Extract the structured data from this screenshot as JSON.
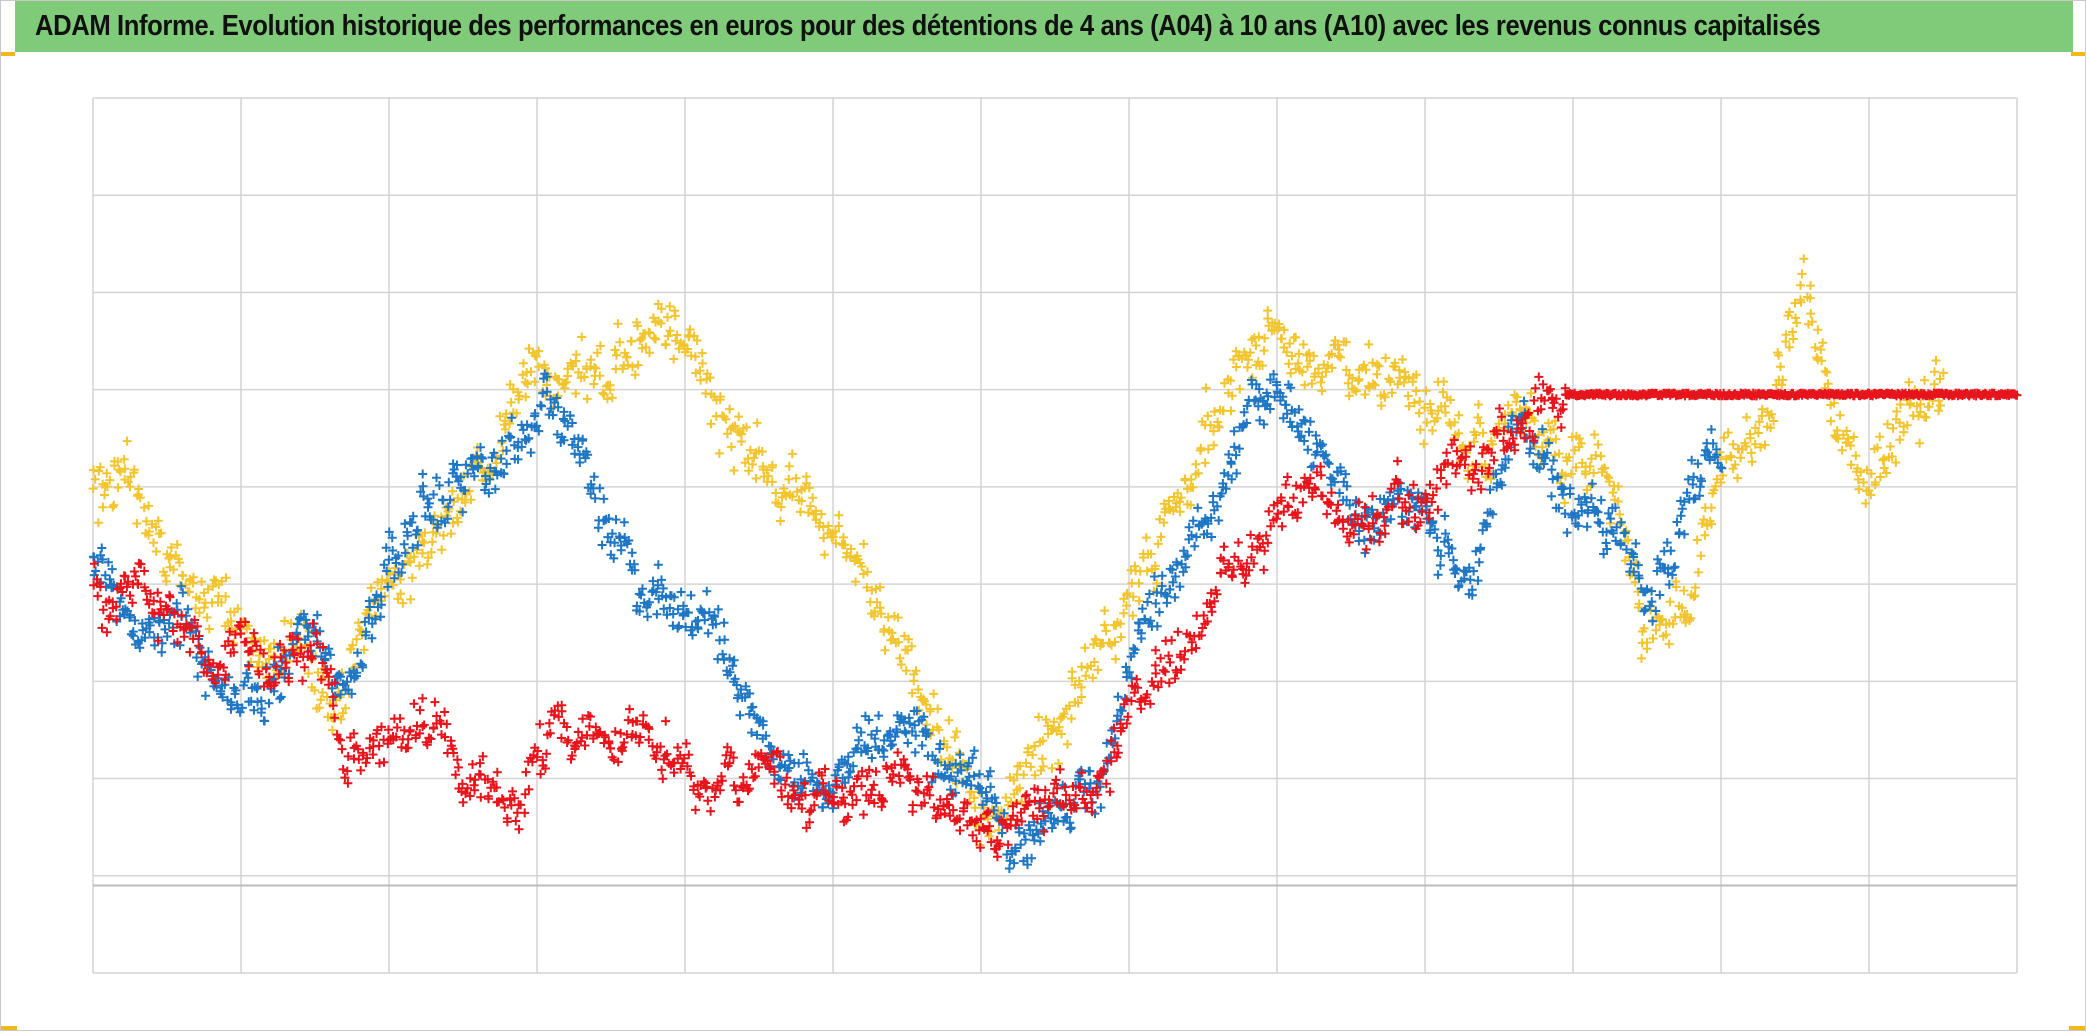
{
  "title": "ADAM Informe. Evolution historique des performances en euros pour des détentions de 4 ans (A04) à 10 ans (A10) avec les revenus connus capitalisés",
  "colors": {
    "title_bar": "#7fcb7a",
    "gridline": "#d4d4d4",
    "corner_accent": "#f2b71c"
  },
  "chart_data": {
    "type": "scatter",
    "marker": "plus",
    "title": "ADAM Informe. Evolution historique des performances en euros pour des détentions de 4 ans (A04) à 10 ans (A10) avec les revenus connus capitalisés",
    "xlabel": "",
    "ylabel": "",
    "x_range": [
      0,
      13
    ],
    "y_range": [
      0,
      9
    ],
    "grid": true,
    "reference_line_y": 0.9,
    "series": [
      {
        "color": "#f2c52e",
        "profile": [
          [
            0,
            5.0
          ],
          [
            0.3,
            4.9
          ],
          [
            0.6,
            4.0
          ],
          [
            1.0,
            3.5
          ],
          [
            1.4,
            3.2
          ],
          [
            1.6,
            3.0
          ],
          [
            2.0,
            3.9
          ],
          [
            2.5,
            5.0
          ],
          [
            3.0,
            6.2
          ],
          [
            3.5,
            6.4
          ],
          [
            3.7,
            6.6
          ],
          [
            4.0,
            6.3
          ],
          [
            4.5,
            5.3
          ],
          [
            5.0,
            4.6
          ],
          [
            5.2,
            4.1
          ],
          [
            5.5,
            3.1
          ],
          [
            5.8,
            2.2
          ],
          [
            6.0,
            1.6
          ],
          [
            6.3,
            2.3
          ],
          [
            6.6,
            2.9
          ],
          [
            7.0,
            3.9
          ],
          [
            7.3,
            4.8
          ],
          [
            7.6,
            5.6
          ],
          [
            8.0,
            6.6
          ],
          [
            8.3,
            6.1
          ],
          [
            8.7,
            6.0
          ],
          [
            9.0,
            5.9
          ],
          [
            9.3,
            5.5
          ],
          [
            9.6,
            5.7
          ],
          [
            10.0,
            5.2
          ],
          [
            10.3,
            4.9
          ],
          [
            10.5,
            3.5
          ],
          [
            10.8,
            4.0
          ],
          [
            11.0,
            5.3
          ],
          [
            11.3,
            5.4
          ],
          [
            11.55,
            7.1
          ],
          [
            11.8,
            5.6
          ],
          [
            12.0,
            5.0
          ],
          [
            12.3,
            5.8
          ],
          [
            12.5,
            6.0
          ]
        ],
        "x_end": 12.5,
        "spread": 0.55,
        "points": 1300
      },
      {
        "color": "#1f77c4",
        "profile": [
          [
            0,
            4.0
          ],
          [
            0.3,
            3.6
          ],
          [
            0.6,
            3.8
          ],
          [
            0.8,
            3.2
          ],
          [
            1.0,
            3.1
          ],
          [
            1.3,
            3.3
          ],
          [
            1.5,
            3.5
          ],
          [
            1.7,
            3.0
          ],
          [
            2.0,
            4.0
          ],
          [
            2.2,
            4.7
          ],
          [
            2.5,
            5.1
          ],
          [
            2.8,
            5.4
          ],
          [
            3.1,
            6.0
          ],
          [
            3.3,
            5.5
          ],
          [
            3.5,
            4.5
          ],
          [
            3.8,
            4.0
          ],
          [
            4.2,
            3.5
          ],
          [
            4.6,
            2.2
          ],
          [
            5.0,
            2.0
          ],
          [
            5.5,
            2.6
          ],
          [
            6.0,
            2.0
          ],
          [
            6.2,
            1.2
          ],
          [
            6.5,
            1.9
          ],
          [
            6.8,
            2.0
          ],
          [
            7.0,
            3.2
          ],
          [
            7.3,
            4.0
          ],
          [
            7.6,
            5.0
          ],
          [
            8.0,
            6.0
          ],
          [
            8.3,
            5.2
          ],
          [
            8.6,
            4.6
          ],
          [
            9.0,
            4.8
          ],
          [
            9.3,
            4.2
          ],
          [
            9.6,
            5.5
          ],
          [
            9.8,
            5.1
          ],
          [
            10.0,
            4.8
          ],
          [
            10.3,
            4.5
          ],
          [
            10.5,
            3.8
          ],
          [
            10.7,
            4.5
          ],
          [
            11.0,
            5.4
          ]
        ],
        "x_end": 11.0,
        "spread": 0.45,
        "points": 1250
      },
      {
        "color": "#e8141c",
        "profile": [
          [
            0,
            3.9
          ],
          [
            0.3,
            4.1
          ],
          [
            0.6,
            3.8
          ],
          [
            0.8,
            3.1
          ],
          [
            1.0,
            3.6
          ],
          [
            1.2,
            3.0
          ],
          [
            1.4,
            3.3
          ],
          [
            1.5,
            3.5
          ],
          [
            1.7,
            2.2
          ],
          [
            2.0,
            2.3
          ],
          [
            2.3,
            2.6
          ],
          [
            2.6,
            1.8
          ],
          [
            2.8,
            1.6
          ],
          [
            3.1,
            2.6
          ],
          [
            3.4,
            2.4
          ],
          [
            3.8,
            2.5
          ],
          [
            4.1,
            2.2
          ],
          [
            4.5,
            1.9
          ],
          [
            5.0,
            1.9
          ],
          [
            5.5,
            2.1
          ],
          [
            6.0,
            1.6
          ],
          [
            6.2,
            1.4
          ],
          [
            6.5,
            1.9
          ],
          [
            6.8,
            1.8
          ],
          [
            7.1,
            3.0
          ],
          [
            7.4,
            3.7
          ],
          [
            7.7,
            4.2
          ],
          [
            8.0,
            4.6
          ],
          [
            8.3,
            5.0
          ],
          [
            8.6,
            4.6
          ],
          [
            9.0,
            4.8
          ],
          [
            9.3,
            5.3
          ],
          [
            9.6,
            5.7
          ],
          [
            9.8,
            5.9
          ],
          [
            9.95,
            5.95
          ]
        ],
        "x_end": 9.95,
        "spread": 0.4,
        "points": 1000,
        "flat_segment": {
          "x_start": 9.95,
          "x_end": 13.0,
          "y": 5.95
        }
      }
    ]
  }
}
